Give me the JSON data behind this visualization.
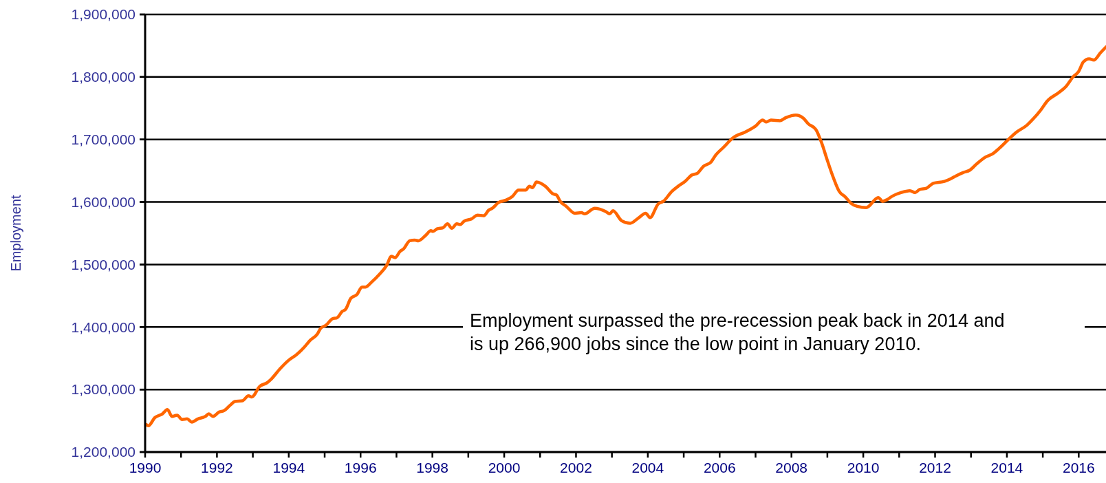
{
  "chart_data": {
    "type": "line",
    "ylabel": "Employment",
    "annotations": [
      "Employment surpassed the pre-recession peak back in 2014 and\nis up 266,900 jobs since the low point in January 2010."
    ],
    "xlim": [
      1990,
      2016.76
    ],
    "ylim": [
      1200000,
      1900000
    ],
    "xticks": [
      1990,
      {
        "value": 1991,
        "label": null
      },
      1992,
      {
        "value": 1993,
        "label": null
      },
      1994,
      {
        "value": 1995,
        "label": null
      },
      1996,
      {
        "value": 1997,
        "label": null
      },
      1998,
      {
        "value": 1999,
        "label": null
      },
      2000,
      {
        "value": 2001,
        "label": null
      },
      2002,
      {
        "value": 2003,
        "label": null
      },
      2004,
      {
        "value": 2005,
        "label": null
      },
      2006,
      {
        "value": 2007,
        "label": null
      },
      2008,
      {
        "value": 2009,
        "label": null
      },
      2010,
      {
        "value": 2011,
        "label": null
      },
      2012,
      {
        "value": 2013,
        "label": null
      },
      2014,
      {
        "value": 2015,
        "label": null
      },
      2016
    ],
    "yticks": [
      {
        "value": 1200000,
        "label": "1,200,000"
      },
      {
        "value": 1300000,
        "label": "1,300,000"
      },
      {
        "value": 1400000,
        "label": "1,400,000"
      },
      {
        "value": 1500000,
        "label": "1,500,000"
      },
      {
        "value": 1600000,
        "label": "1,600,000"
      },
      {
        "value": 1700000,
        "label": "1,700,000"
      },
      {
        "value": 1800000,
        "label": "1,800,000"
      },
      {
        "value": 1900000,
        "label": "1,900,000"
      }
    ],
    "grid": "y",
    "marker": "none",
    "line_style": "solid",
    "series": [
      {
        "color": "#ff6600",
        "x": [
          1990.03,
          1990.09,
          1990.27,
          1990.48,
          1990.62,
          1990.75,
          1990.89,
          1991.03,
          1991.17,
          1991.3,
          1991.47,
          1991.68,
          1991.77,
          1991.89,
          1992.06,
          1992.19,
          1992.37,
          1992.5,
          1992.71,
          1992.88,
          1992.97,
          1993.19,
          1993.4,
          1993.5,
          1993.77,
          1993.98,
          1994.22,
          1994.42,
          1994.6,
          1994.8,
          1994.89,
          1995.04,
          1995.21,
          1995.35,
          1995.49,
          1995.58,
          1995.73,
          1995.9,
          1996.04,
          1996.14,
          1996.31,
          1996.52,
          1996.72,
          1996.86,
          1996.96,
          1997.1,
          1997.2,
          1997.37,
          1997.51,
          1997.61,
          1997.82,
          1997.96,
          1998.02,
          1998.13,
          1998.3,
          1998.42,
          1998.54,
          1998.68,
          1998.78,
          1998.88,
          1999.09,
          1999.26,
          1999.43,
          1999.57,
          1999.67,
          1999.84,
          2000.05,
          2000.23,
          2000.4,
          2000.6,
          2000.7,
          2000.79,
          2000.9,
          2001.15,
          2001.36,
          2001.46,
          2001.56,
          2001.73,
          2001.97,
          2002.15,
          2002.24,
          2002.52,
          2002.82,
          2002.94,
          2003.03,
          2003.27,
          2003.51,
          2003.75,
          2003.94,
          2004.06,
          2004.29,
          2004.43,
          2004.67,
          2004.84,
          2005.04,
          2005.22,
          2005.38,
          2005.55,
          2005.76,
          2005.89,
          2006.1,
          2006.38,
          2006.72,
          2006.99,
          2007.2,
          2007.3,
          2007.43,
          2007.68,
          2007.85,
          2008.12,
          2008.33,
          2008.47,
          2008.68,
          2008.85,
          2008.98,
          2009.16,
          2009.33,
          2009.5,
          2009.66,
          2009.83,
          2010.08,
          2010.42,
          2010.54,
          2010.67,
          2010.8,
          2011.05,
          2011.3,
          2011.44,
          2011.57,
          2011.76,
          2011.95,
          2012.26,
          2012.43,
          2012.59,
          2012.78,
          2012.97,
          2013.16,
          2013.41,
          2013.6,
          2013.79,
          2014.06,
          2014.25,
          2014.56,
          2014.75,
          2014.94,
          2015.13,
          2015.42,
          2015.65,
          2015.84,
          2016.0,
          2016.13,
          2016.29,
          2016.42,
          2016.61,
          2016.76
        ],
        "values": [
          1244000,
          1242000,
          1255000,
          1261000,
          1268000,
          1257000,
          1259000,
          1252000,
          1253000,
          1248000,
          1253000,
          1257000,
          1261000,
          1257000,
          1264000,
          1266000,
          1275000,
          1281000,
          1282000,
          1290000,
          1288000,
          1305000,
          1311000,
          1316000,
          1334000,
          1346000,
          1356000,
          1367000,
          1379000,
          1389000,
          1398000,
          1403000,
          1413000,
          1415000,
          1425000,
          1428000,
          1446000,
          1452000,
          1464000,
          1464000,
          1472000,
          1484000,
          1498000,
          1513000,
          1511000,
          1521000,
          1525000,
          1538000,
          1539000,
          1538000,
          1547000,
          1554000,
          1553000,
          1557000,
          1559000,
          1565000,
          1558000,
          1565000,
          1564000,
          1569000,
          1573000,
          1579000,
          1578000,
          1587000,
          1590000,
          1599000,
          1603000,
          1609000,
          1619000,
          1619000,
          1625000,
          1623000,
          1632000,
          1625000,
          1613000,
          1611000,
          1601000,
          1593000,
          1582000,
          1583000,
          1581000,
          1590000,
          1585000,
          1581000,
          1586000,
          1570000,
          1566000,
          1575000,
          1582000,
          1575000,
          1597000,
          1601000,
          1617000,
          1625000,
          1633000,
          1643000,
          1646000,
          1657000,
          1664000,
          1675000,
          1687000,
          1703000,
          1712000,
          1721000,
          1731000,
          1728000,
          1731000,
          1730000,
          1735000,
          1739000,
          1734000,
          1725000,
          1716000,
          1693000,
          1670000,
          1640000,
          1617000,
          1608000,
          1598000,
          1593000,
          1591000,
          1607000,
          1601000,
          1604000,
          1609000,
          1615000,
          1618000,
          1615000,
          1620000,
          1622000,
          1630000,
          1633000,
          1637000,
          1642000,
          1647000,
          1651000,
          1661000,
          1672000,
          1677000,
          1686000,
          1701000,
          1711000,
          1723000,
          1734000,
          1747000,
          1762000,
          1774000,
          1785000,
          1800000,
          1809000,
          1824000,
          1829000,
          1827000,
          1839000,
          1848000
        ]
      }
    ]
  }
}
